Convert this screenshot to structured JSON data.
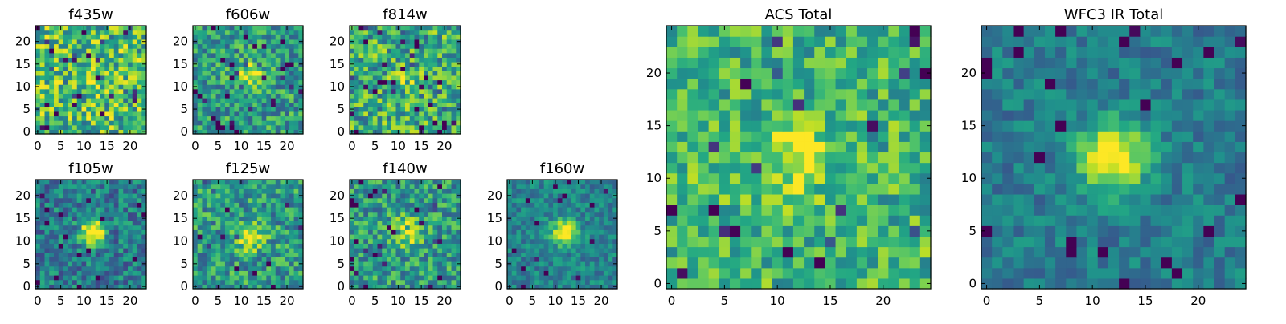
{
  "figure": {
    "colormap": "viridis",
    "grid": false,
    "legend": "none"
  },
  "chart_data": [
    {
      "type": "heatmap",
      "title": "f435w",
      "shape": [
        24,
        24
      ],
      "xticks": [
        0,
        5,
        10,
        15,
        20
      ],
      "yticks": [
        0,
        5,
        10,
        15,
        20
      ],
      "xlim": [
        0,
        24
      ],
      "ylim": [
        0,
        24
      ],
      "source_peak": [
        12,
        12
      ],
      "source_width": 1.6,
      "source_amp": 0.12,
      "noise": 0.32,
      "baseline": 0.68,
      "seed": 11,
      "dark_speckle": 0.06
    },
    {
      "type": "heatmap",
      "title": "f606w",
      "shape": [
        24,
        24
      ],
      "xticks": [
        0,
        5,
        10,
        15,
        20
      ],
      "yticks": [
        0,
        5,
        10,
        15,
        20
      ],
      "xlim": [
        0,
        24
      ],
      "ylim": [
        0,
        24
      ],
      "source_peak": [
        12,
        13
      ],
      "source_width": 1.8,
      "source_amp": 0.38,
      "noise": 0.26,
      "baseline": 0.55,
      "seed": 23,
      "dark_speckle": 0.05
    },
    {
      "type": "heatmap",
      "title": "f814w",
      "shape": [
        24,
        24
      ],
      "xticks": [
        0,
        5,
        10,
        15,
        20
      ],
      "yticks": [
        0,
        5,
        10,
        15,
        20
      ],
      "xlim": [
        0,
        24
      ],
      "ylim": [
        0,
        24
      ],
      "source_peak": [
        12,
        12
      ],
      "source_width": 1.7,
      "source_amp": 0.2,
      "noise": 0.3,
      "baseline": 0.62,
      "seed": 37,
      "dark_speckle": 0.07
    },
    {
      "type": "heatmap",
      "title": "f105w",
      "shape": [
        24,
        24
      ],
      "xticks": [
        0,
        5,
        10,
        15,
        20
      ],
      "yticks": [
        0,
        5,
        10,
        15,
        20
      ],
      "xlim": [
        0,
        24
      ],
      "ylim": [
        0,
        24
      ],
      "source_peak": [
        12,
        12
      ],
      "source_width": 1.8,
      "source_amp": 0.55,
      "noise": 0.22,
      "baseline": 0.42,
      "seed": 41,
      "dark_speckle": 0.04
    },
    {
      "type": "heatmap",
      "title": "f125w",
      "shape": [
        24,
        24
      ],
      "xticks": [
        0,
        5,
        10,
        15,
        20
      ],
      "yticks": [
        0,
        5,
        10,
        15,
        20
      ],
      "xlim": [
        0,
        24
      ],
      "ylim": [
        0,
        24
      ],
      "source_peak": [
        12,
        11
      ],
      "source_width": 2.0,
      "source_amp": 0.35,
      "noise": 0.26,
      "baseline": 0.55,
      "seed": 53,
      "dark_speckle": 0.04
    },
    {
      "type": "heatmap",
      "title": "f140w",
      "shape": [
        24,
        24
      ],
      "xticks": [
        0,
        5,
        10,
        15,
        20
      ],
      "yticks": [
        0,
        5,
        10,
        15,
        20
      ],
      "xlim": [
        0,
        24
      ],
      "ylim": [
        0,
        24
      ],
      "source_peak": [
        12,
        12
      ],
      "source_width": 2.2,
      "source_amp": 0.3,
      "noise": 0.25,
      "baseline": 0.55,
      "seed": 67,
      "dark_speckle": 0.05
    },
    {
      "type": "heatmap",
      "title": "f160w",
      "shape": [
        24,
        24
      ],
      "xticks": [
        0,
        5,
        10,
        15,
        20
      ],
      "yticks": [
        0,
        5,
        10,
        15,
        20
      ],
      "xlim": [
        0,
        24
      ],
      "ylim": [
        0,
        24
      ],
      "source_peak": [
        12,
        12
      ],
      "source_width": 1.8,
      "source_amp": 0.5,
      "noise": 0.16,
      "baseline": 0.45,
      "seed": 79,
      "dark_speckle": 0.03
    },
    {
      "type": "heatmap",
      "title": "ACS Total",
      "shape": [
        25,
        25
      ],
      "xticks": [
        0,
        5,
        10,
        15,
        20
      ],
      "yticks": [
        0,
        5,
        10,
        15,
        20
      ],
      "xlim": [
        0,
        25
      ],
      "ylim": [
        0,
        25
      ],
      "source_peak": [
        12,
        12
      ],
      "source_width": 2.0,
      "source_amp": 0.28,
      "noise": 0.24,
      "baseline": 0.66,
      "seed": 89,
      "dark_speckle": 0.03
    },
    {
      "type": "heatmap",
      "title": "WFC3 IR Total",
      "shape": [
        25,
        25
      ],
      "xticks": [
        0,
        5,
        10,
        15,
        20
      ],
      "yticks": [
        0,
        5,
        10,
        15,
        20
      ],
      "xlim": [
        0,
        25
      ],
      "ylim": [
        0,
        25
      ],
      "source_peak": [
        12,
        12
      ],
      "source_width": 2.2,
      "source_amp": 0.5,
      "noise": 0.14,
      "baseline": 0.42,
      "seed": 97,
      "dark_speckle": 0.04
    }
  ]
}
